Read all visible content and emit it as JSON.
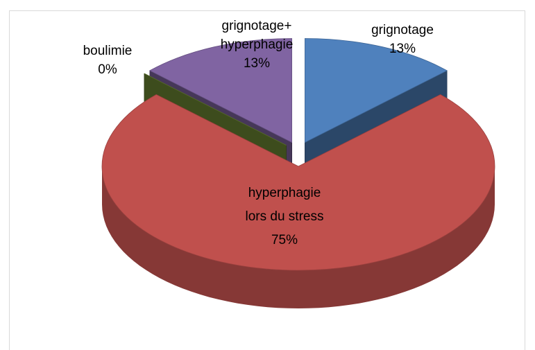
{
  "chart_data": {
    "type": "pie3d",
    "categories": [
      "grignotage",
      "hyperphagie lors du stress",
      "boulimie",
      "grignotage+ hyperphagie"
    ],
    "values": [
      13,
      75,
      0,
      13
    ],
    "value_labels": [
      "13%",
      "75%",
      "0%",
      "13%"
    ],
    "colors": [
      "#4f81bd",
      "#c0504d",
      "#6f8a35",
      "#8064a2"
    ],
    "exploded": true
  }
}
